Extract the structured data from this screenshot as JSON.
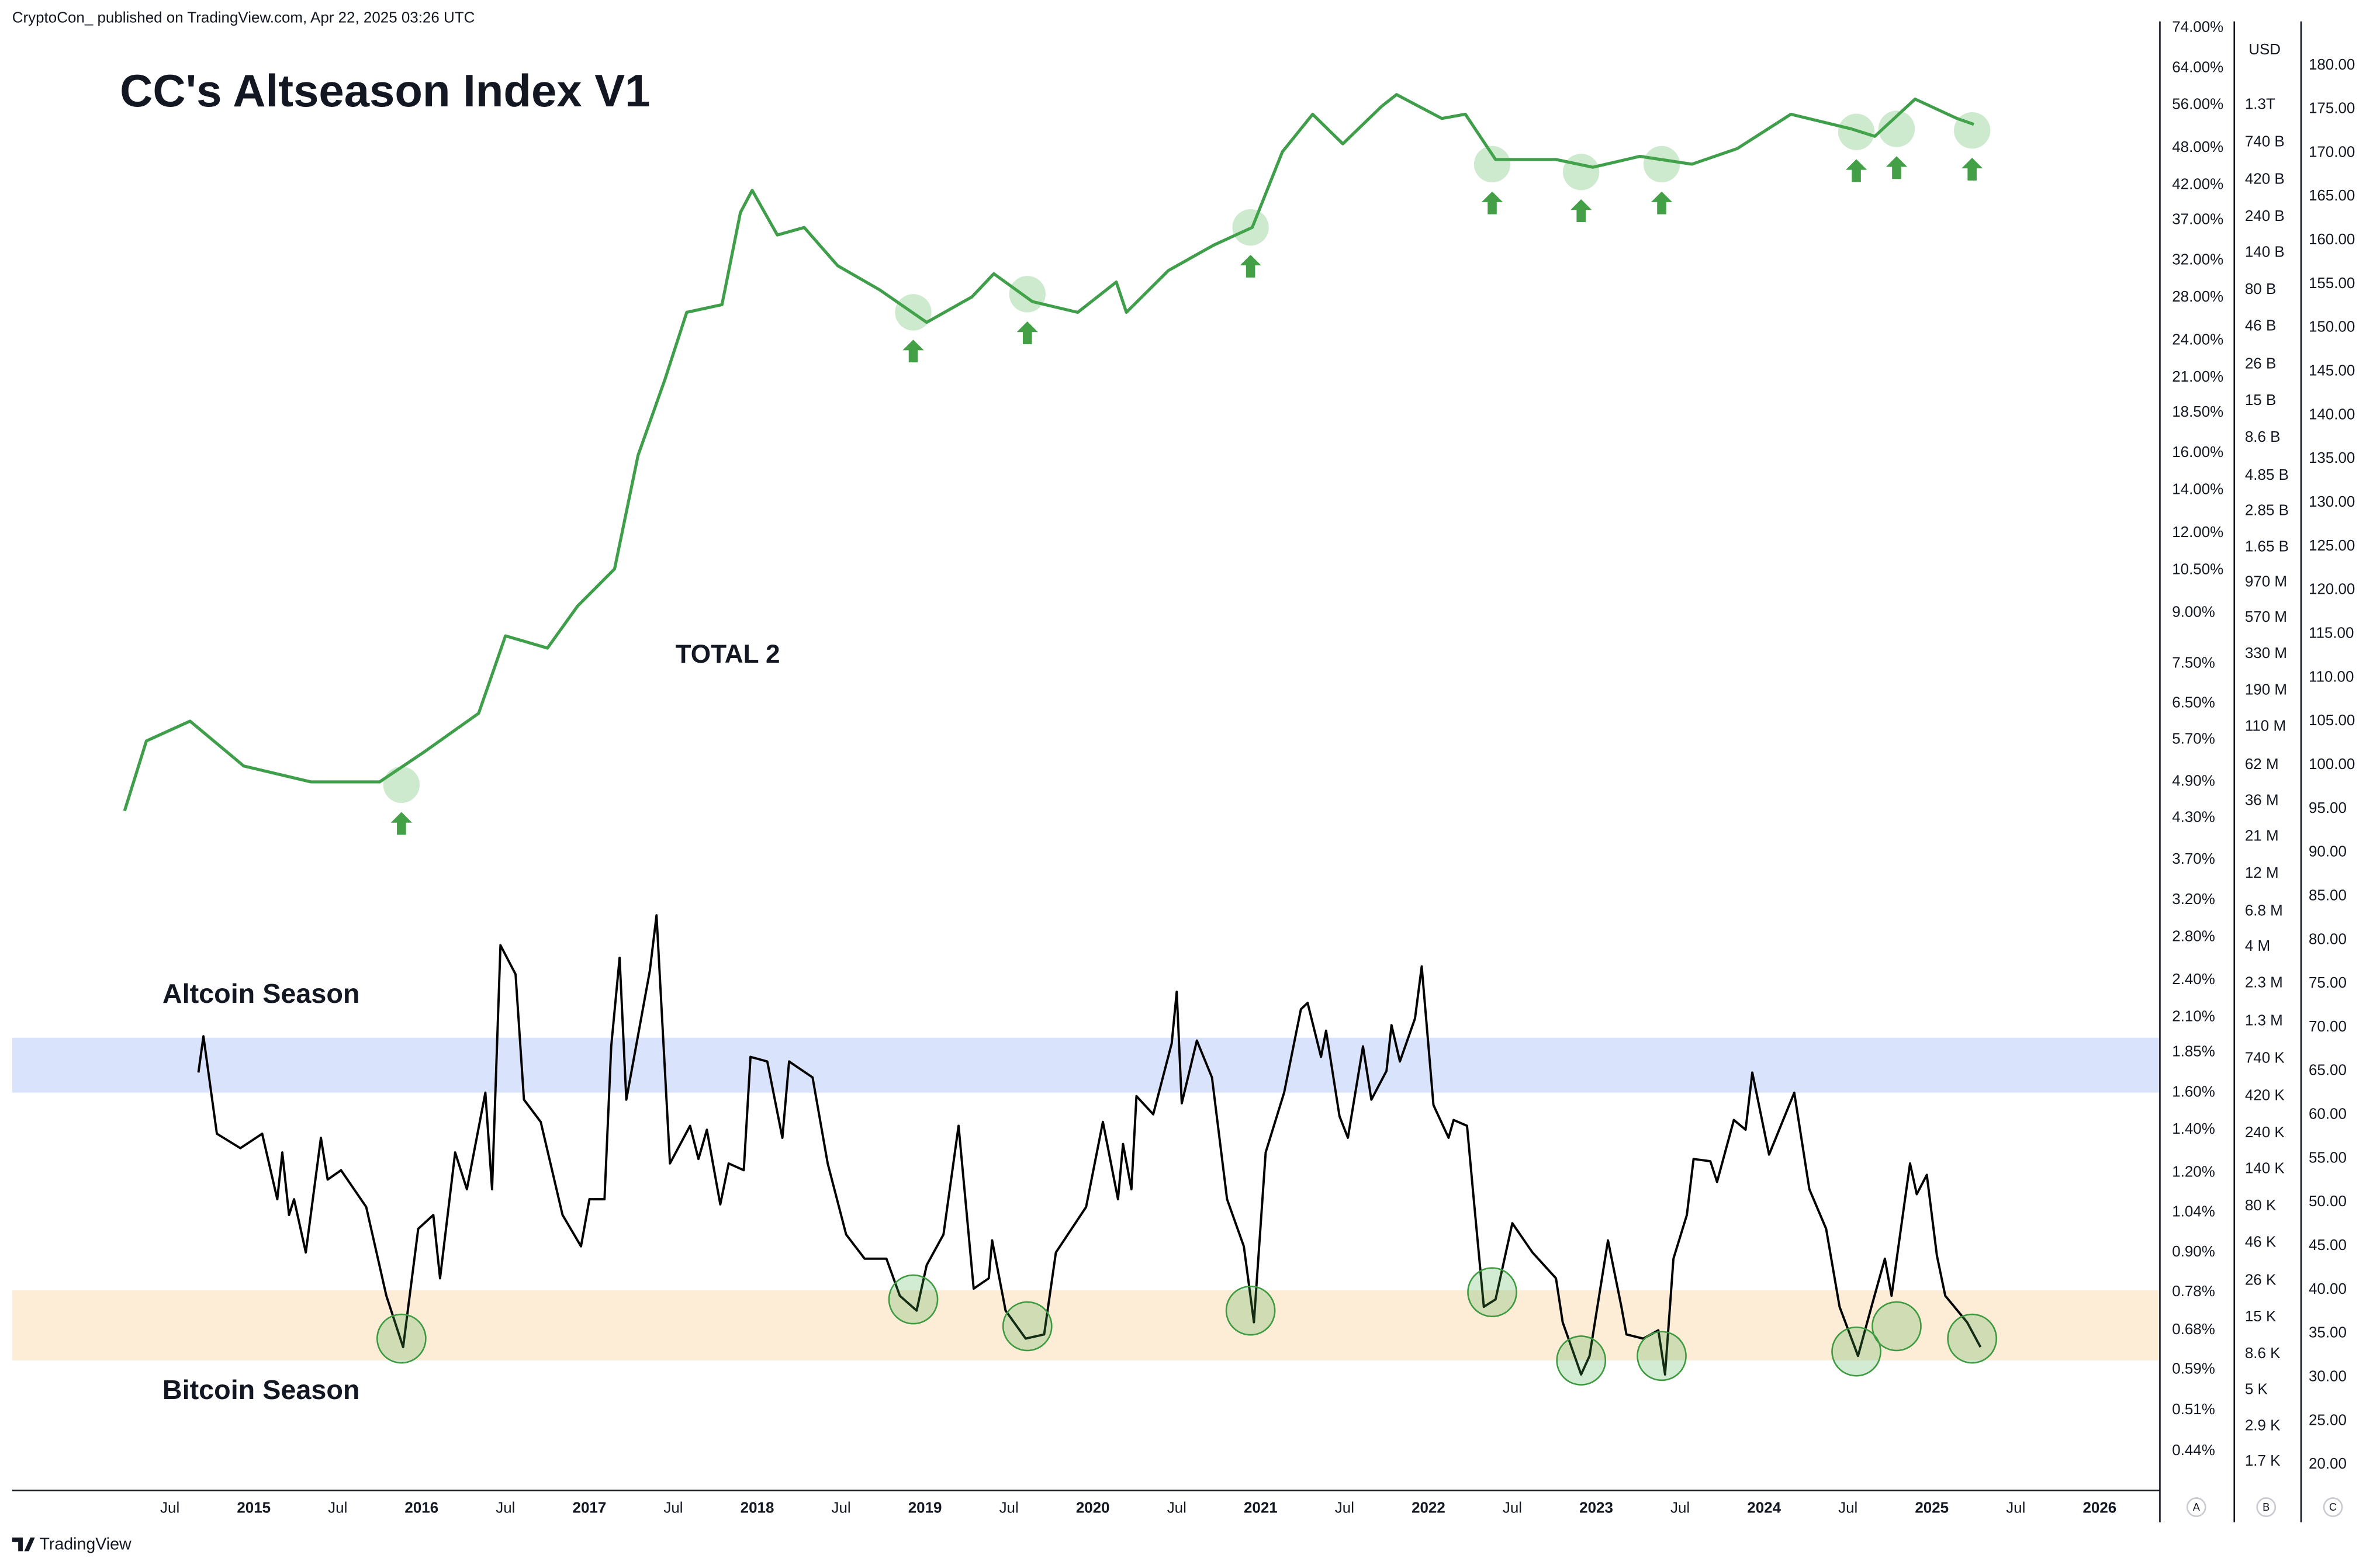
{
  "header": {
    "publisher": "CryptoCon_ published on TradingView.com, Apr 22, 2025 03:26 UTC"
  },
  "footer": "TradingView",
  "chart_data": {
    "type": "line",
    "title": "CC's Altseason Index V1",
    "log_scale": true,
    "xlim": [
      2013.56,
      2026.35
    ],
    "xticks": [
      {
        "value": 2014.5,
        "label": "Jul"
      },
      2015,
      {
        "value": 2015.5,
        "label": "Jul"
      },
      2016,
      {
        "value": 2016.5,
        "label": "Jul"
      },
      2017,
      {
        "value": 2017.5,
        "label": "Jul"
      },
      2018,
      {
        "value": 2018.5,
        "label": "Jul"
      },
      2019,
      {
        "value": 2019.5,
        "label": "Jul"
      },
      2020,
      {
        "value": 2020.5,
        "label": "Jul"
      },
      2021,
      {
        "value": 2021.5,
        "label": "Jul"
      },
      2022,
      {
        "value": 2022.5,
        "label": "Jul"
      },
      2023,
      {
        "value": 2023.5,
        "label": "Jul"
      },
      2024,
      {
        "value": 2024.5,
        "label": "Jul"
      },
      2025,
      {
        "value": 2025.5,
        "label": "Jul"
      },
      2026
    ],
    "ylim": [
      0.382,
      75.7
    ],
    "yticks": [
      {
        "value": 74,
        "label": "74.00%"
      },
      {
        "value": 64,
        "label": "64.00%"
      },
      {
        "value": 56,
        "label": "56.00%"
      },
      {
        "value": 48,
        "label": "48.00%"
      },
      {
        "value": 42,
        "label": "42.00%"
      },
      {
        "value": 37,
        "label": "37.00%"
      },
      {
        "value": 32,
        "label": "32.00%"
      },
      {
        "value": 28,
        "label": "28.00%"
      },
      {
        "value": 24,
        "label": "24.00%"
      },
      {
        "value": 21,
        "label": "21.00%"
      },
      {
        "value": 18.5,
        "label": "18.50%"
      },
      {
        "value": 16,
        "label": "16.00%"
      },
      {
        "value": 14,
        "label": "14.00%"
      },
      {
        "value": 12,
        "label": "12.00%"
      },
      {
        "value": 10.5,
        "label": "10.50%"
      },
      {
        "value": 9,
        "label": "9.00%"
      },
      {
        "value": 7.5,
        "label": "7.50%"
      },
      {
        "value": 6.5,
        "label": "6.50%"
      },
      {
        "value": 5.7,
        "label": "5.70%"
      },
      {
        "value": 4.9,
        "label": "4.90%"
      },
      {
        "value": 4.3,
        "label": "4.30%"
      },
      {
        "value": 3.7,
        "label": "3.70%"
      },
      {
        "value": 3.2,
        "label": "3.20%"
      },
      {
        "value": 2.8,
        "label": "2.80%"
      },
      {
        "value": 2.4,
        "label": "2.40%"
      },
      {
        "value": 2.1,
        "label": "2.10%"
      },
      {
        "value": 1.85,
        "label": "1.85%"
      },
      {
        "value": 1.6,
        "label": "1.60%"
      },
      {
        "value": 1.4,
        "label": "1.40%"
      },
      {
        "value": 1.2,
        "label": "1.20%"
      },
      {
        "value": 1.04,
        "label": "1.04%"
      },
      {
        "value": 0.9,
        "label": "0.90%"
      },
      {
        "value": 0.78,
        "label": "0.78%"
      },
      {
        "value": 0.68,
        "label": "0.68%"
      },
      {
        "value": 0.59,
        "label": "0.59%"
      },
      {
        "value": 0.51,
        "label": "0.51%"
      },
      {
        "value": 0.44,
        "label": "0.44%"
      }
    ],
    "y2_unit": "USD",
    "y2lim": [
      1100,
      4580000000000
    ],
    "y2ticks": [
      {
        "value": 1300000000000,
        "label": "1.3T"
      },
      {
        "value": 740000000000,
        "label": "740 B"
      },
      {
        "value": 420000000000,
        "label": "420 B"
      },
      {
        "value": 240000000000,
        "label": "240 B"
      },
      {
        "value": 140000000000,
        "label": "140 B"
      },
      {
        "value": 80000000000,
        "label": "80 B"
      },
      {
        "value": 46000000000,
        "label": "46 B"
      },
      {
        "value": 26000000000,
        "label": "26 B"
      },
      {
        "value": 15000000000,
        "label": "15 B"
      },
      {
        "value": 8600000000,
        "label": "8.6 B"
      },
      {
        "value": 4850000000,
        "label": "4.85 B"
      },
      {
        "value": 2850000000,
        "label": "2.85 B"
      },
      {
        "value": 1650000000,
        "label": "1.65 B"
      },
      {
        "value": 970000000,
        "label": "970 M"
      },
      {
        "value": 570000000,
        "label": "570 M"
      },
      {
        "value": 330000000,
        "label": "330 M"
      },
      {
        "value": 190000000,
        "label": "190 M"
      },
      {
        "value": 110000000,
        "label": "110 M"
      },
      {
        "value": 62000000,
        "label": "62 M"
      },
      {
        "value": 36000000,
        "label": "36 M"
      },
      {
        "value": 21000000,
        "label": "21 M"
      },
      {
        "value": 12000000,
        "label": "12 M"
      },
      {
        "value": 6800000,
        "label": "6.8 M"
      },
      {
        "value": 4000000,
        "label": "4 M"
      },
      {
        "value": 2300000,
        "label": "2.3 M"
      },
      {
        "value": 1300000,
        "label": "1.3 M"
      },
      {
        "value": 740000,
        "label": "740 K"
      },
      {
        "value": 420000,
        "label": "420 K"
      },
      {
        "value": 240000,
        "label": "240 K"
      },
      {
        "value": 140000,
        "label": "140 K"
      },
      {
        "value": 80000,
        "label": "80 K"
      },
      {
        "value": 46000,
        "label": "46 K"
      },
      {
        "value": 26000,
        "label": "26 K"
      },
      {
        "value": 15000,
        "label": "15 K"
      },
      {
        "value": 8600,
        "label": "8.6 K"
      },
      {
        "value": 5000,
        "label": "5 K"
      },
      {
        "value": 2900,
        "label": "2.9 K"
      },
      {
        "value": 1700,
        "label": "1.7 K"
      }
    ],
    "y3lim": [
      17.05,
      185.03
    ],
    "y3ticks": [
      {
        "value": 180,
        "label": "180.00"
      },
      {
        "value": 175,
        "label": "175.00"
      },
      {
        "value": 170,
        "label": "170.00"
      },
      {
        "value": 165,
        "label": "165.00"
      },
      {
        "value": 160,
        "label": "160.00"
      },
      {
        "value": 155,
        "label": "155.00"
      },
      {
        "value": 150,
        "label": "150.00"
      },
      {
        "value": 145,
        "label": "145.00"
      },
      {
        "value": 140,
        "label": "140.00"
      },
      {
        "value": 135,
        "label": "135.00"
      },
      {
        "value": 130,
        "label": "130.00"
      },
      {
        "value": 125,
        "label": "125.00"
      },
      {
        "value": 120,
        "label": "120.00"
      },
      {
        "value": 115,
        "label": "115.00"
      },
      {
        "value": 110,
        "label": "110.00"
      },
      {
        "value": 105,
        "label": "105.00"
      },
      {
        "value": 100,
        "label": "100.00"
      },
      {
        "value": 95,
        "label": "95.00"
      },
      {
        "value": 90,
        "label": "90.00"
      },
      {
        "value": 85,
        "label": "85.00"
      },
      {
        "value": 80,
        "label": "80.00"
      },
      {
        "value": 75,
        "label": "75.00"
      },
      {
        "value": 70,
        "label": "70.00"
      },
      {
        "value": 65,
        "label": "65.00"
      },
      {
        "value": 60,
        "label": "60.00"
      },
      {
        "value": 55,
        "label": "55.00"
      },
      {
        "value": 50,
        "label": "50.00"
      },
      {
        "value": 45,
        "label": "45.00"
      },
      {
        "value": 40,
        "label": "40.00"
      },
      {
        "value": 35,
        "label": "35.00"
      },
      {
        "value": 30,
        "label": "30.00"
      },
      {
        "value": 25,
        "label": "25.00"
      },
      {
        "value": 20,
        "label": "20.00"
      }
    ],
    "pane_labels": [
      "A",
      "B",
      "C"
    ],
    "bands": [
      {
        "label": "Altcoin Season",
        "range": [
          1.6,
          1.95
        ],
        "color": "#d9e3fc",
        "text_color": "#2a62e3"
      },
      {
        "label": "Bitcoin Season",
        "range": [
          0.61,
          0.785
        ],
        "color": "#fdecd6",
        "text_color": "#f29a1c"
      }
    ],
    "series": [
      {
        "name": "TOTAL 2",
        "color": "#3f9e4a",
        "axis": "y2",
        "x": [
          2014.23,
          2014.36,
          2014.62,
          2014.94,
          2015.34,
          2015.75,
          2016.02,
          2016.34,
          2016.5,
          2016.75,
          2016.93,
          2017.15,
          2017.29,
          2017.45,
          2017.58,
          2017.79,
          2017.9,
          2017.97,
          2018.12,
          2018.28,
          2018.48,
          2018.73,
          2019.01,
          2019.28,
          2019.41,
          2019.64,
          2019.91,
          2020.14,
          2020.2,
          2020.45,
          2020.72,
          2020.95,
          2021.13,
          2021.31,
          2021.49,
          2021.72,
          2021.81,
          2022.08,
          2022.22,
          2022.4,
          2022.76,
          2022.98,
          2023.26,
          2023.57,
          2023.84,
          2024.16,
          2024.52,
          2024.66,
          2024.9,
          2025.15,
          2025.25
        ],
        "values": [
          31000000,
          89000000,
          120000000,
          61000000,
          48000000,
          48000000,
          76000000,
          135000000,
          434000000,
          361000000,
          681000000,
          1190000000,
          6600000000,
          20700000000,
          57000000000,
          64000000000,
          257000000000,
          359000000000,
          183000000000,
          205000000000,
          115000000000,
          80000000000,
          49000000000,
          72000000000,
          102000000000,
          67000000000,
          57000000000,
          90000000000,
          57000000000,
          107000000000,
          157000000000,
          205000000000,
          642000000000,
          1130000000000,
          723000000000,
          1270000000000,
          1520000000000,
          1060000000000,
          1130000000000,
          571000000000,
          571000000000,
          508000000000,
          599000000000,
          532000000000,
          673000000000,
          1130000000000,
          906000000000,
          810000000000,
          1420000000000,
          1060000000000,
          970000000000
        ]
      },
      {
        "color": "#000000",
        "x": [
          2014.67,
          2014.7,
          2014.78,
          2014.92,
          2015.05,
          2015.14,
          2015.17,
          2015.21,
          2015.24,
          2015.31,
          2015.4,
          2015.44,
          2015.52,
          2015.67,
          2015.79,
          2015.89,
          2015.98,
          2016.07,
          2016.11,
          2016.2,
          2016.27,
          2016.38,
          2016.42,
          2016.47,
          2016.56,
          2016.61,
          2016.71,
          2016.84,
          2016.95,
          2017.0,
          2017.09,
          2017.13,
          2017.18,
          2017.22,
          2017.36,
          2017.4,
          2017.48,
          2017.6,
          2017.65,
          2017.7,
          2017.78,
          2017.83,
          2017.92,
          2017.96,
          2018.06,
          2018.15,
          2018.19,
          2018.33,
          2018.42,
          2018.53,
          2018.64,
          2018.77,
          2018.85,
          2018.95,
          2019.01,
          2019.11,
          2019.2,
          2019.29,
          2019.38,
          2019.4,
          2019.48,
          2019.6,
          2019.71,
          2019.78,
          2019.96,
          2020.06,
          2020.15,
          2020.18,
          2020.23,
          2020.26,
          2020.36,
          2020.47,
          2020.5,
          2020.53,
          2020.62,
          2020.71,
          2020.8,
          2020.9,
          2020.96,
          2021.03,
          2021.14,
          2021.24,
          2021.28,
          2021.36,
          2021.39,
          2021.47,
          2021.52,
          2021.61,
          2021.66,
          2021.75,
          2021.78,
          2021.83,
          2021.92,
          2021.96,
          2022.03,
          2022.12,
          2022.15,
          2022.23,
          2022.27,
          2022.33,
          2022.4,
          2022.5,
          2022.62,
          2022.76,
          2022.8,
          2022.91,
          2022.96,
          2023.07,
          2023.15,
          2023.18,
          2023.28,
          2023.37,
          2023.41,
          2023.46,
          2023.54,
          2023.58,
          2023.68,
          2023.72,
          2023.82,
          2023.89,
          2023.93,
          2024.03,
          2024.18,
          2024.27,
          2024.37,
          2024.45,
          2024.56,
          2024.64,
          2024.72,
          2024.76,
          2024.84,
          2024.87,
          2024.91,
          2024.97,
          2025.03,
          2025.08,
          2025.21,
          2025.29
        ],
        "values": [
          1.72,
          1.96,
          1.38,
          1.31,
          1.38,
          1.09,
          1.29,
          1.03,
          1.09,
          0.9,
          1.36,
          1.17,
          1.21,
          1.06,
          0.77,
          0.64,
          0.98,
          1.03,
          0.82,
          1.29,
          1.13,
          1.6,
          1.13,
          2.72,
          2.45,
          1.56,
          1.44,
          1.03,
          0.92,
          1.09,
          1.09,
          1.89,
          2.6,
          1.56,
          2.48,
          3.03,
          1.24,
          1.42,
          1.26,
          1.4,
          1.07,
          1.24,
          1.21,
          1.82,
          1.79,
          1.36,
          1.79,
          1.69,
          1.24,
          0.96,
          0.88,
          0.88,
          0.77,
          0.73,
          0.86,
          0.96,
          1.42,
          0.79,
          0.82,
          0.94,
          0.73,
          0.66,
          0.67,
          0.9,
          1.06,
          1.44,
          1.09,
          1.33,
          1.13,
          1.58,
          1.48,
          1.91,
          2.3,
          1.54,
          1.93,
          1.69,
          1.09,
          0.92,
          0.7,
          1.29,
          1.6,
          2.16,
          2.21,
          1.82,
          2.0,
          1.47,
          1.36,
          1.89,
          1.56,
          1.73,
          2.04,
          1.79,
          2.09,
          2.52,
          1.53,
          1.36,
          1.45,
          1.42,
          1.09,
          0.74,
          0.76,
          1.0,
          0.9,
          0.82,
          0.7,
          0.58,
          0.62,
          0.94,
          0.74,
          0.67,
          0.66,
          0.68,
          0.58,
          0.88,
          1.03,
          1.26,
          1.25,
          1.16,
          1.45,
          1.4,
          1.72,
          1.28,
          1.6,
          1.13,
          0.98,
          0.74,
          0.62,
          0.74,
          0.88,
          0.77,
          1.09,
          1.24,
          1.11,
          1.19,
          0.89,
          0.77,
          0.7,
          0.64
        ]
      }
    ],
    "signals": {
      "x": [
        2015.88,
        2018.93,
        2019.61,
        2020.94,
        2022.38,
        2022.91,
        2023.39,
        2024.55,
        2024.79,
        2025.24
      ],
      "index": [
        0.66,
        0.76,
        0.69,
        0.73,
        0.78,
        0.61,
        0.62,
        0.63,
        0.69,
        0.66
      ],
      "total": [
        46000000,
        57000000000,
        75000000000,
        205000000000,
        532000000000,
        473000000000,
        532000000000,
        866000000000,
        906000000000,
        885000000000
      ]
    }
  }
}
